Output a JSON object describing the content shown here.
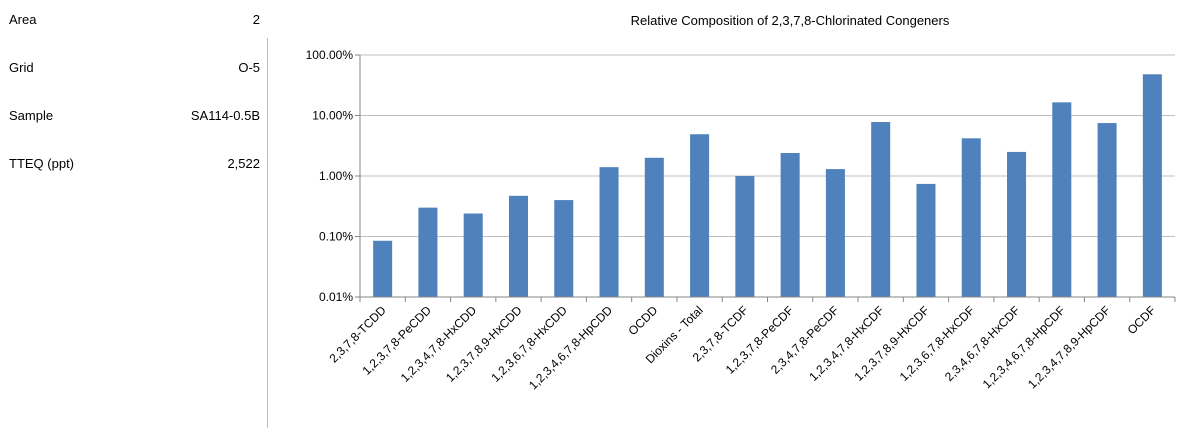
{
  "info": [
    {
      "label": "Area",
      "value": "2"
    },
    {
      "label": "Grid",
      "value": "O-5"
    },
    {
      "label": "Sample",
      "value": "SA114-0.5B"
    },
    {
      "label": "TTEQ (ppt)",
      "value": "2,522"
    }
  ],
  "chart_data": {
    "type": "bar",
    "title": "Relative Composition of 2,3,7,8-Chlorinated Congeners",
    "xlabel": "",
    "ylabel": "",
    "yscale": "log",
    "ylim": [
      0.01,
      100
    ],
    "yticks": [
      {
        "value": 0.01,
        "label": "0.01%"
      },
      {
        "value": 0.1,
        "label": "0.10%"
      },
      {
        "value": 1,
        "label": "1.00%"
      },
      {
        "value": 10,
        "label": "10.00%"
      },
      {
        "value": 100,
        "label": "100.00%"
      }
    ],
    "grid": true,
    "legend": "none",
    "bar_color": "#4f81bd",
    "categories": [
      "2,3,7,8-TCDD",
      "1,2,3,7,8-PeCDD",
      "1,2,3,4,7,8-HxCDD",
      "1,2,3,7,8,9-HxCDD",
      "1,2,3,6,7,8-HxCDD",
      "1,2,3,4,6,7,8-HpCDD",
      "OCDD",
      "Dioxins - Total",
      "2,3,7,8-TCDF",
      "1,2,3,7,8-PeCDF",
      "2,3,4,7,8-PeCDF",
      "1,2,3,4,7,8-HxCDF",
      "1,2,3,7,8,9-HxCDF",
      "1,2,3,6,7,8-HxCDF",
      "2,3,4,6,7,8-HxCDF",
      "1,2,3,4,6,7,8-HpCDF",
      "1,2,3,4,7,8,9-HpCDF",
      "OCDF"
    ],
    "values": [
      0.085,
      0.3,
      0.24,
      0.47,
      0.4,
      1.4,
      2.0,
      4.9,
      1.0,
      2.4,
      1.3,
      7.8,
      0.74,
      4.2,
      2.5,
      16.5,
      7.5,
      48
    ]
  }
}
